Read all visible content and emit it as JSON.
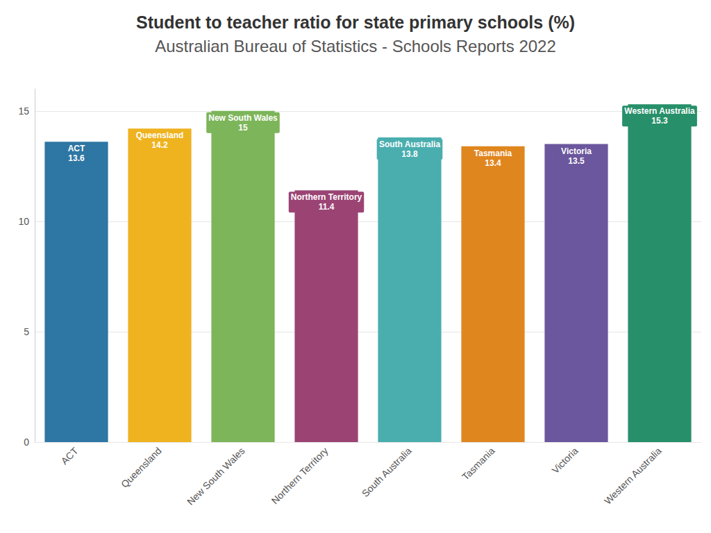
{
  "chart_data": {
    "type": "bar",
    "title": "Student to teacher ratio for state primary schools (%)",
    "subtitle": "Australian Bureau of Statistics - Schools Reports 2022",
    "categories": [
      "ACT",
      "Queensland",
      "New South Wales",
      "Northern Territory",
      "South Australia",
      "Tasmania",
      "Victoria",
      "Western Australia"
    ],
    "values": [
      13.6,
      14.2,
      15,
      11.4,
      13.8,
      13.4,
      13.5,
      15.3
    ],
    "colors": [
      "#2e76a3",
      "#efb320",
      "#7db55a",
      "#9b4474",
      "#4aaeaf",
      "#e0861f",
      "#6b579d",
      "#27906a"
    ],
    "ylim": [
      0,
      16
    ],
    "yticks": [
      0,
      5,
      10,
      15
    ],
    "grid": true,
    "data_labels": true
  }
}
